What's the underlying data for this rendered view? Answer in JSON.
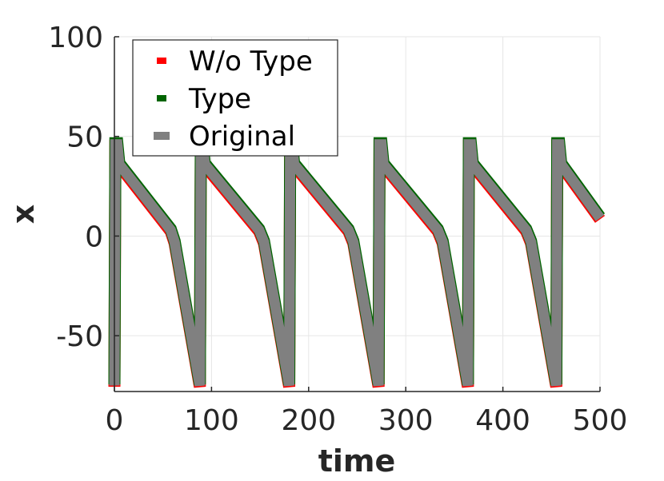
{
  "chart_data": {
    "type": "line",
    "title": "",
    "xlabel": "time",
    "ylabel": "x",
    "xlim": [
      0,
      500
    ],
    "ylim": [
      -78,
      100
    ],
    "xticks": [
      "0",
      "100",
      "200",
      "300",
      "400",
      "500"
    ],
    "xtick_values": [
      0,
      100,
      200,
      300,
      400,
      500
    ],
    "yticks": [
      "-50",
      "0",
      "50",
      "100"
    ],
    "ytick_values": [
      -50,
      0,
      50,
      100
    ],
    "grid": true,
    "legend_position": "top-left",
    "series": [
      {
        "name": "W/o Type",
        "color": "#ff0000",
        "x": [
          0,
          1,
          3,
          5,
          58,
          62,
          88,
          89,
          91,
          93,
          149,
          154,
          180,
          181,
          183,
          185,
          241,
          246,
          272,
          273,
          275,
          277,
          333,
          338,
          364,
          365,
          367,
          369,
          424,
          429,
          455,
          456,
          458,
          460,
          500
        ],
        "y": [
          -75,
          46,
          46,
          36,
          3,
          -3,
          -75,
          46,
          46,
          36,
          3,
          -3,
          -75,
          46,
          46,
          36,
          3,
          -3,
          -75,
          46,
          46,
          36,
          3,
          -3,
          -75,
          46,
          46,
          36,
          3,
          -3,
          -75,
          46,
          46,
          36,
          9
        ]
      },
      {
        "name": "Type",
        "color": "#006400",
        "x": [
          0,
          1,
          3,
          5,
          58,
          62,
          88,
          89,
          91,
          93,
          149,
          154,
          180,
          181,
          183,
          185,
          241,
          246,
          272,
          273,
          275,
          277,
          333,
          338,
          364,
          365,
          367,
          369,
          424,
          429,
          455,
          456,
          458,
          460,
          500
        ],
        "y": [
          -75,
          46,
          46,
          36,
          3,
          -3,
          -75,
          46,
          46,
          36,
          3,
          -3,
          -75,
          46,
          46,
          36,
          3,
          -3,
          -75,
          46,
          46,
          36,
          3,
          -3,
          -75,
          46,
          46,
          36,
          3,
          -3,
          -75,
          46,
          46,
          36,
          9
        ]
      },
      {
        "name": "Original",
        "color": "#808080",
        "x": [
          0,
          1,
          3,
          5,
          58,
          62,
          88,
          89,
          91,
          93,
          149,
          154,
          180,
          181,
          183,
          185,
          241,
          246,
          272,
          273,
          275,
          277,
          333,
          338,
          364,
          365,
          367,
          369,
          424,
          429,
          455,
          456,
          458,
          460,
          500
        ],
        "y": [
          -75,
          46,
          46,
          36,
          3,
          -3,
          -75,
          46,
          46,
          36,
          3,
          -3,
          -75,
          46,
          46,
          36,
          3,
          -3,
          -75,
          46,
          46,
          36,
          3,
          -3,
          -75,
          46,
          46,
          36,
          3,
          -3,
          -75,
          46,
          46,
          36,
          9
        ]
      }
    ]
  }
}
